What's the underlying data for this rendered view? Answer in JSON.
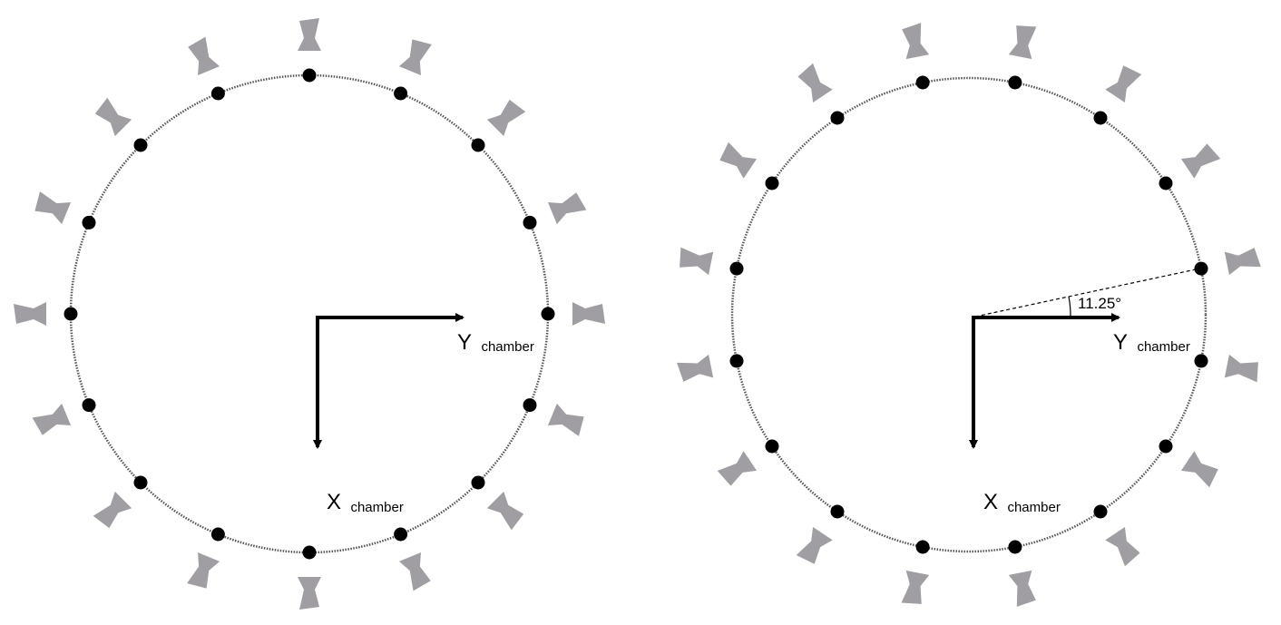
{
  "panels": [
    {
      "id": "left",
      "electrode_count": 16,
      "angular_offset_deg": 0,
      "y_axis": {
        "main": "Y",
        "sub": "chamber"
      },
      "x_axis": {
        "main": "X",
        "sub": "chamber"
      }
    },
    {
      "id": "right",
      "electrode_count": 16,
      "angular_offset_deg": 11.25,
      "y_axis": {
        "main": "Y",
        "sub": "chamber"
      },
      "x_axis": {
        "main": "X",
        "sub": "chamber"
      },
      "angle_label": "11.25°"
    }
  ],
  "colors": {
    "ring": "#555555",
    "electrode": "#000000",
    "sensor": "#a09da3",
    "arrow": "#000000"
  },
  "icons": {
    "sensor": "funnel-sensor-shape",
    "electrode": "filled-dot"
  }
}
